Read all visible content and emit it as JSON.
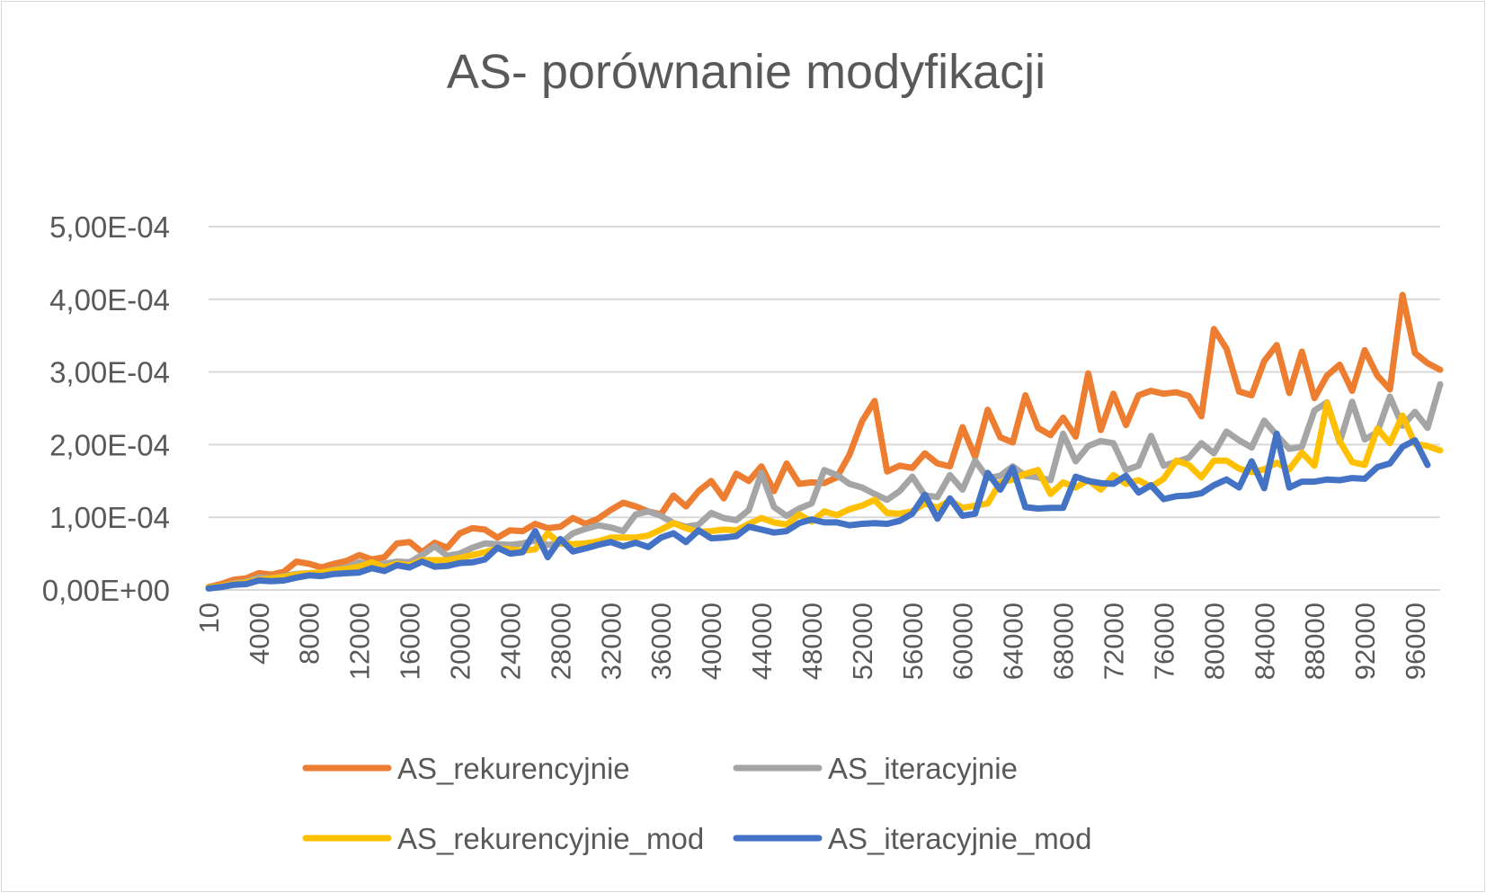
{
  "chart_data": {
    "type": "line",
    "title": "AS- porównanie modyfikacji",
    "xlabel": "",
    "ylabel": "",
    "ylim": [
      0,
      0.0005
    ],
    "yticks": [
      0,
      0.0001,
      0.0002,
      0.0003,
      0.0004,
      0.0005
    ],
    "ytick_labels": [
      "0,00E+00",
      "1,00E-04",
      "2,00E-04",
      "3,00E-04",
      "4,00E-04",
      "5,00E-04"
    ],
    "xtick_labels": [
      "10",
      "4000",
      "8000",
      "12000",
      "16000",
      "20000",
      "24000",
      "28000",
      "32000",
      "36000",
      "40000",
      "44000",
      "48000",
      "52000",
      "56000",
      "60000",
      "64000",
      "68000",
      "72000",
      "76000",
      "80000",
      "84000",
      "88000",
      "92000",
      "96000"
    ],
    "x": [
      10,
      1000,
      2000,
      3000,
      4000,
      5000,
      6000,
      7000,
      8000,
      9000,
      10000,
      11000,
      12000,
      13000,
      14000,
      15000,
      16000,
      17000,
      18000,
      19000,
      20000,
      21000,
      22000,
      23000,
      24000,
      25000,
      26000,
      27000,
      28000,
      29000,
      30000,
      31000,
      32000,
      33000,
      34000,
      35000,
      36000,
      37000,
      38000,
      39000,
      40000,
      41000,
      42000,
      43000,
      44000,
      45000,
      46000,
      47000,
      48000,
      49000,
      50000,
      51000,
      52000,
      53000,
      54000,
      55000,
      56000,
      57000,
      58000,
      59000,
      60000,
      61000,
      62000,
      63000,
      64000,
      65000,
      66000,
      67000,
      68000,
      69000,
      70000,
      71000,
      72000,
      73000,
      74000,
      75000,
      76000,
      77000,
      78000,
      79000,
      80000,
      81000,
      82000,
      83000,
      84000,
      85000,
      86000,
      87000,
      88000,
      89000,
      90000,
      91000,
      92000,
      93000,
      94000,
      95000,
      96000,
      97000,
      98000
    ],
    "legend_position": "bottom",
    "grid": true,
    "series": [
      {
        "name": "AS_rekurencyjnie",
        "color": "#ed7d31",
        "values": [
          4e-06,
          8e-06,
          1.4e-05,
          1.6e-05,
          2.3e-05,
          2.1e-05,
          2.5e-05,
          3.9e-05,
          3.6e-05,
          3.1e-05,
          3.6e-05,
          4e-05,
          4.8e-05,
          4.2e-05,
          4.5e-05,
          6.4e-05,
          6.6e-05,
          5.2e-05,
          6.5e-05,
          5.8e-05,
          7.8e-05,
          8.5e-05,
          8.3e-05,
          7.2e-05,
          8.2e-05,
          8.1e-05,
          9.1e-05,
          8.5e-05,
          8.7e-05,
          9.9e-05,
          9.1e-05,
          9.8e-05,
          0.00011,
          0.00012,
          0.000115,
          0.000108,
          0.000104,
          0.00013,
          0.000115,
          0.000136,
          0.00015,
          0.000126,
          0.00016,
          0.00015,
          0.00017,
          0.000136,
          0.000174,
          0.000146,
          0.000148,
          0.000147,
          0.000155,
          0.000186,
          0.000232,
          0.00026,
          0.000163,
          0.000171,
          0.000168,
          0.000188,
          0.000174,
          0.00017,
          0.000224,
          0.000183,
          0.000248,
          0.00021,
          0.000203,
          0.000268,
          0.000223,
          0.000213,
          0.000237,
          0.000211,
          0.000298,
          0.00022,
          0.00027,
          0.000227,
          0.000268,
          0.000274,
          0.00027,
          0.000272,
          0.000267,
          0.000239,
          0.000359,
          0.000332,
          0.000273,
          0.000268,
          0.000315,
          0.000337,
          0.000271,
          0.000328,
          0.000264,
          0.000295,
          0.00031,
          0.000274,
          0.00033,
          0.000295,
          0.000276,
          0.000406,
          0.000326,
          0.000312,
          0.000303
        ]
      },
      {
        "name": "AS_iteracyjnie",
        "color": "#a5a5a5",
        "values": [
          3e-06,
          5e-06,
          9e-06,
          1.1e-05,
          1.7e-05,
          1.6e-05,
          1.9e-05,
          2.2e-05,
          2.3e-05,
          2.4e-05,
          2.8e-05,
          3.1e-05,
          3.8e-05,
          3.4e-05,
          3.6e-05,
          3.9e-05,
          3.8e-05,
          4.8e-05,
          6e-05,
          4.7e-05,
          5e-05,
          5.8e-05,
          6.4e-05,
          6.3e-05,
          6.2e-05,
          6.4e-05,
          6.8e-05,
          6.2e-05,
          6.4e-05,
          7.8e-05,
          8.4e-05,
          8.9e-05,
          8.6e-05,
          8.1e-05,
          0.000104,
          0.000108,
          0.000102,
          9.2e-05,
          8.7e-05,
          9e-05,
          0.000106,
          9.9e-05,
          9.6e-05,
          0.00011,
          0.000161,
          0.000114,
          0.000102,
          0.000112,
          0.000119,
          0.000165,
          0.000158,
          0.000146,
          0.000141,
          0.000132,
          0.000124,
          0.000136,
          0.000156,
          0.00013,
          0.000128,
          0.000158,
          0.000138,
          0.000178,
          0.000154,
          0.000157,
          0.00017,
          0.000157,
          0.000155,
          0.000151,
          0.000215,
          0.000177,
          0.000198,
          0.000205,
          0.000202,
          0.000165,
          0.000171,
          0.000212,
          0.000171,
          0.000176,
          0.000182,
          0.000202,
          0.000188,
          0.000218,
          0.000206,
          0.000196,
          0.000233,
          0.000213,
          0.000194,
          0.000197,
          0.000247,
          0.000258,
          0.000203,
          0.000259,
          0.000207,
          0.000217,
          0.000266,
          0.000226,
          0.000245,
          0.000223,
          0.000283
        ]
      },
      {
        "name": "AS_rekurencyjnie_mod",
        "color": "#ffc000",
        "values": [
          3e-06,
          5e-06,
          8e-06,
          1e-05,
          1.4e-05,
          1.6e-05,
          1.8e-05,
          2.1e-05,
          2.3e-05,
          2.4e-05,
          2.7e-05,
          2.9e-05,
          3.2e-05,
          3.8e-05,
          3.1e-05,
          3.6e-05,
          3.4e-05,
          4.1e-05,
          4.1e-05,
          4.1e-05,
          4.4e-05,
          4.8e-05,
          5.2e-05,
          5.7e-05,
          5.6e-05,
          5.4e-05,
          5.6e-05,
          7.8e-05,
          6.4e-05,
          6.3e-05,
          6.4e-05,
          6.7e-05,
          7.2e-05,
          7.2e-05,
          7.2e-05,
          7.5e-05,
          8.3e-05,
          9.2e-05,
          8.5e-05,
          8e-05,
          8.1e-05,
          8.3e-05,
          8.2e-05,
          9.1e-05,
          9.9e-05,
          9.3e-05,
          9e-05,
          0.000104,
          9.4e-05,
          0.000108,
          0.000103,
          0.000111,
          0.000116,
          0.000124,
          0.000106,
          0.000105,
          0.000108,
          0.000119,
          0.000113,
          0.000123,
          0.000113,
          0.000116,
          0.000119,
          0.000148,
          0.000152,
          0.00016,
          0.000165,
          0.000132,
          0.000148,
          0.000141,
          0.000151,
          0.000138,
          0.000158,
          0.000146,
          0.000151,
          0.000142,
          0.000153,
          0.000178,
          0.000172,
          0.000155,
          0.000178,
          0.000178,
          0.000167,
          0.000162,
          0.000166,
          0.000175,
          0.000166,
          0.000189,
          0.000171,
          0.000257,
          0.000205,
          0.000176,
          0.000172,
          0.000222,
          0.000202,
          0.00024,
          0.000201,
          0.000198,
          0.000192
        ]
      },
      {
        "name": "AS_iteracyjnie_mod",
        "color": "#4472c4",
        "values": [
          2e-06,
          4e-06,
          7e-06,
          8e-06,
          1.3e-05,
          1.2e-05,
          1.3e-05,
          1.7e-05,
          2e-05,
          1.9e-05,
          2.2e-05,
          2.3e-05,
          2.4e-05,
          3e-05,
          2.6e-05,
          3.4e-05,
          3.1e-05,
          3.9e-05,
          3.2e-05,
          3.3e-05,
          3.7e-05,
          3.8e-05,
          4.2e-05,
          5.8e-05,
          5e-05,
          5.2e-05,
          8.1e-05,
          4.5e-05,
          7e-05,
          5.3e-05,
          5.7e-05,
          6.2e-05,
          6.6e-05,
          6e-05,
          6.5e-05,
          5.9e-05,
          7.2e-05,
          7.8e-05,
          6.6e-05,
          8.2e-05,
          7.1e-05,
          7.2e-05,
          7.4e-05,
          8.7e-05,
          8.3e-05,
          7.9e-05,
          8.1e-05,
          9.2e-05,
          9.7e-05,
          9.3e-05,
          9.3e-05,
          8.9e-05,
          9.1e-05,
          9.2e-05,
          9.1e-05,
          9.5e-05,
          0.000105,
          0.000131,
          9.8e-05,
          0.000126,
          0.000102,
          0.000105,
          0.000161,
          0.000138,
          0.000168,
          0.000114,
          0.000112,
          0.000113,
          0.000113,
          0.000156,
          0.00015,
          0.000147,
          0.000146,
          0.000157,
          0.000134,
          0.000144,
          0.000125,
          0.000129,
          0.00013,
          0.000133,
          0.000144,
          0.000152,
          0.000141,
          0.000177,
          0.00014,
          0.000215,
          0.000141,
          0.000149,
          0.000149,
          0.000152,
          0.000151,
          0.000154,
          0.000153,
          0.000169,
          0.000174,
          0.000197,
          0.000206,
          0.000172,
          null
        ]
      }
    ]
  }
}
